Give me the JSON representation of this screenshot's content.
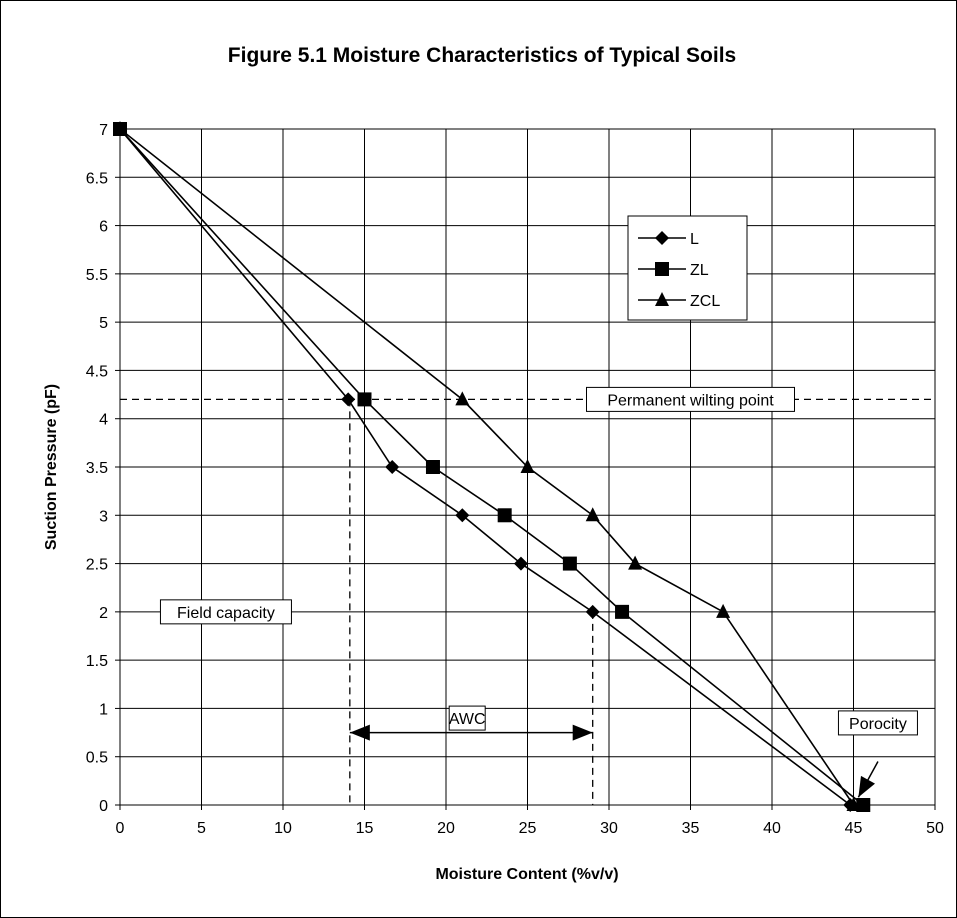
{
  "chart_data": {
    "type": "line",
    "title": "Figure 5.1   Moisture Characteristics of Typical Soils",
    "xlabel": "Moisture Content (%v/v)",
    "ylabel": "Suction Pressure (pF)",
    "xlim": [
      0,
      50
    ],
    "ylim": [
      0,
      7
    ],
    "x_ticks": [
      "0",
      "5",
      "10",
      "15",
      "20",
      "25",
      "30",
      "35",
      "40",
      "45",
      "50"
    ],
    "y_ticks": [
      "0",
      "0.5",
      "1",
      "1.5",
      "2",
      "2.5",
      "3",
      "3.5",
      "4",
      "4.5",
      "5",
      "5.5",
      "6",
      "6.5",
      "7"
    ],
    "grid": true,
    "legend_position": "top-right",
    "series": [
      {
        "name": "L",
        "marker": "diamond",
        "points": [
          [
            0,
            7
          ],
          [
            14,
            4.2
          ],
          [
            16.7,
            3.5
          ],
          [
            21,
            3
          ],
          [
            24.6,
            2.5
          ],
          [
            29,
            2
          ],
          [
            44.8,
            0
          ]
        ]
      },
      {
        "name": "ZL",
        "marker": "square",
        "points": [
          [
            0,
            7
          ],
          [
            15,
            4.2
          ],
          [
            19.2,
            3.5
          ],
          [
            23.6,
            3
          ],
          [
            27.6,
            2.5
          ],
          [
            30.8,
            2
          ],
          [
            45.6,
            0
          ]
        ]
      },
      {
        "name": "ZCL",
        "marker": "triangle",
        "points": [
          [
            0,
            7
          ],
          [
            21,
            4.2
          ],
          [
            25,
            3.5
          ],
          [
            29,
            3
          ],
          [
            31.6,
            2.5
          ],
          [
            37,
            2
          ],
          [
            45,
            0
          ]
        ]
      }
    ],
    "reference_lines": [
      {
        "orientation": "horizontal",
        "y": 4.2,
        "style": "dashed"
      },
      {
        "orientation": "vertical",
        "x": 14.1,
        "y_top": 4.2,
        "style": "dashed"
      },
      {
        "orientation": "vertical",
        "x": 29,
        "y_top": 2,
        "style": "dashed"
      }
    ],
    "annotations": [
      {
        "text": "Permanent wilting point",
        "x": 35,
        "y": 4.2
      },
      {
        "text": "Field capacity",
        "x": 6.5,
        "y": 2
      },
      {
        "text": "AWC",
        "x": 21.3,
        "y": 0.9
      },
      {
        "text": "Porocity",
        "x": 46.5,
        "y": 0.85
      }
    ],
    "arrows": [
      {
        "type": "double",
        "from": [
          14.1,
          0.75
        ],
        "to": [
          29,
          0.75
        ]
      },
      {
        "type": "single",
        "from": [
          46.5,
          0.45
        ],
        "to": [
          45.3,
          0.08
        ]
      }
    ]
  }
}
